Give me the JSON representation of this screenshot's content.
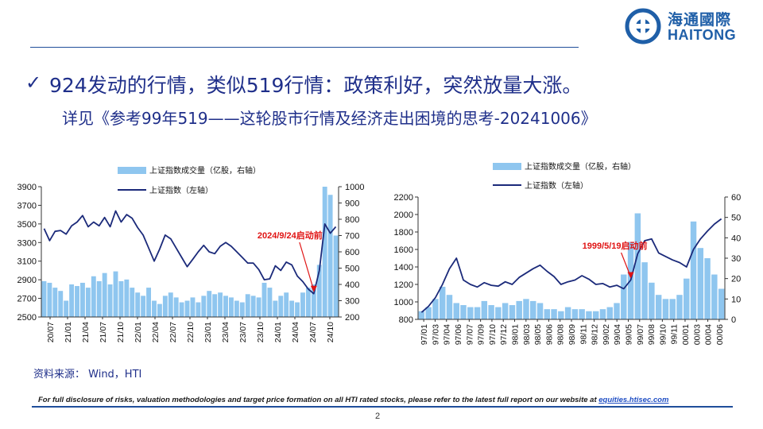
{
  "header": {
    "logo_cn": "海通國際",
    "logo_en": "HAITONG"
  },
  "headline": "924发动的行情，类似519行情：政策利好，突然放量大涨。",
  "subline": "详见《参考99年519——这轮股市行情及经济走出困境的思考-20241006》",
  "check_icon": "✓",
  "source": "资料来源： Wind，HTI",
  "disclaimer": {
    "text": "For full disclosure of risks, valuation methodologies and target price formation on all HTI rated stocks, please refer to the latest full report on our website at ",
    "link": "equities.htisec.com"
  },
  "page_number": "2",
  "colors": {
    "accent": "#1f2f8a",
    "bar": "#8fc6ef",
    "line": "#1b2a7a",
    "annotation": "#e01414"
  },
  "chart_data": [
    {
      "type": "line",
      "legend": [
        "上证指数成交量（亿股，右轴）",
        "上证指数（左轴）"
      ],
      "left_ticks": [
        "3900",
        "3700",
        "3500",
        "3300",
        "3100",
        "2900",
        "2700",
        "2500"
      ],
      "right_ticks": [
        "1000",
        "900",
        "800",
        "700",
        "600",
        "500",
        "400",
        "300",
        "200"
      ],
      "ylim_left": [
        2500,
        3900
      ],
      "ylim_right": [
        200,
        1000
      ],
      "x_ticks": [
        "20/07",
        "21/01",
        "21/04",
        "21/07",
        "21/10",
        "22/01",
        "22/04",
        "22/07",
        "22/10",
        "23/01",
        "23/04",
        "23/07",
        "23/10",
        "24/01",
        "24/04",
        "24/07",
        "24/10"
      ],
      "index_line": [
        3450,
        3320,
        3420,
        3430,
        3390,
        3480,
        3520,
        3590,
        3470,
        3520,
        3480,
        3570,
        3470,
        3640,
        3520,
        3600,
        3560,
        3460,
        3380,
        3240,
        3100,
        3230,
        3380,
        3340,
        3240,
        3140,
        3040,
        3120,
        3200,
        3270,
        3200,
        3180,
        3260,
        3300,
        3260,
        3200,
        3140,
        3080,
        3080,
        3010,
        2900,
        2910,
        3050,
        3000,
        3090,
        3060,
        2940,
        2880,
        2800,
        2750,
        3000,
        3500,
        3400,
        3470
      ],
      "volume_bars": [
        420,
        410,
        380,
        360,
        300,
        400,
        390,
        410,
        380,
        450,
        420,
        470,
        400,
        480,
        420,
        430,
        380,
        350,
        330,
        380,
        300,
        280,
        330,
        350,
        320,
        290,
        300,
        320,
        290,
        330,
        360,
        340,
        350,
        330,
        320,
        300,
        290,
        340,
        330,
        320,
        410,
        380,
        300,
        330,
        350,
        300,
        290,
        350,
        380,
        400,
        520,
        1000,
        950,
        700
      ],
      "annotation": "2024/9/24启动前"
    },
    {
      "type": "line",
      "legend": [
        "上证指数成交量（亿股，右轴）",
        "上证指数（左轴）"
      ],
      "left_ticks": [
        "2200",
        "2000",
        "1800",
        "1600",
        "1400",
        "1200",
        "1000",
        "800"
      ],
      "right_ticks": [
        "60",
        "50",
        "40",
        "30",
        "20",
        "10",
        "0"
      ],
      "ylim_left": [
        800,
        2200
      ],
      "ylim_right": [
        0,
        60
      ],
      "x_ticks": [
        "97/01",
        "97/03",
        "97/04",
        "97/06",
        "97/07",
        "97/09",
        "97/10",
        "97/12",
        "98/01",
        "98/03",
        "98/05",
        "98/06",
        "98/08",
        "98/09",
        "98/11",
        "98/12",
        "99/02",
        "99/04",
        "99/05",
        "99/07",
        "99/08",
        "99/10",
        "99/11",
        "00/01",
        "00/03",
        "00/04",
        "00/06"
      ],
      "index_line": [
        880,
        950,
        1050,
        1200,
        1380,
        1500,
        1250,
        1200,
        1170,
        1220,
        1190,
        1180,
        1230,
        1200,
        1280,
        1330,
        1380,
        1420,
        1350,
        1290,
        1200,
        1230,
        1250,
        1300,
        1260,
        1200,
        1210,
        1170,
        1190,
        1150,
        1250,
        1550,
        1700,
        1720,
        1560,
        1520,
        1480,
        1450,
        1400,
        1600,
        1720,
        1810,
        1890,
        1950
      ],
      "volume_bars": [
        4,
        6,
        10,
        16,
        12,
        8,
        7,
        6,
        6,
        9,
        7,
        6,
        8,
        7,
        9,
        10,
        9,
        8,
        5,
        5,
        4,
        6,
        5,
        5,
        4,
        4,
        5,
        6,
        8,
        22,
        38,
        52,
        28,
        18,
        12,
        10,
        10,
        12,
        20,
        48,
        35,
        30,
        22,
        15
      ],
      "annotation": "1999/5/19启动前"
    }
  ]
}
